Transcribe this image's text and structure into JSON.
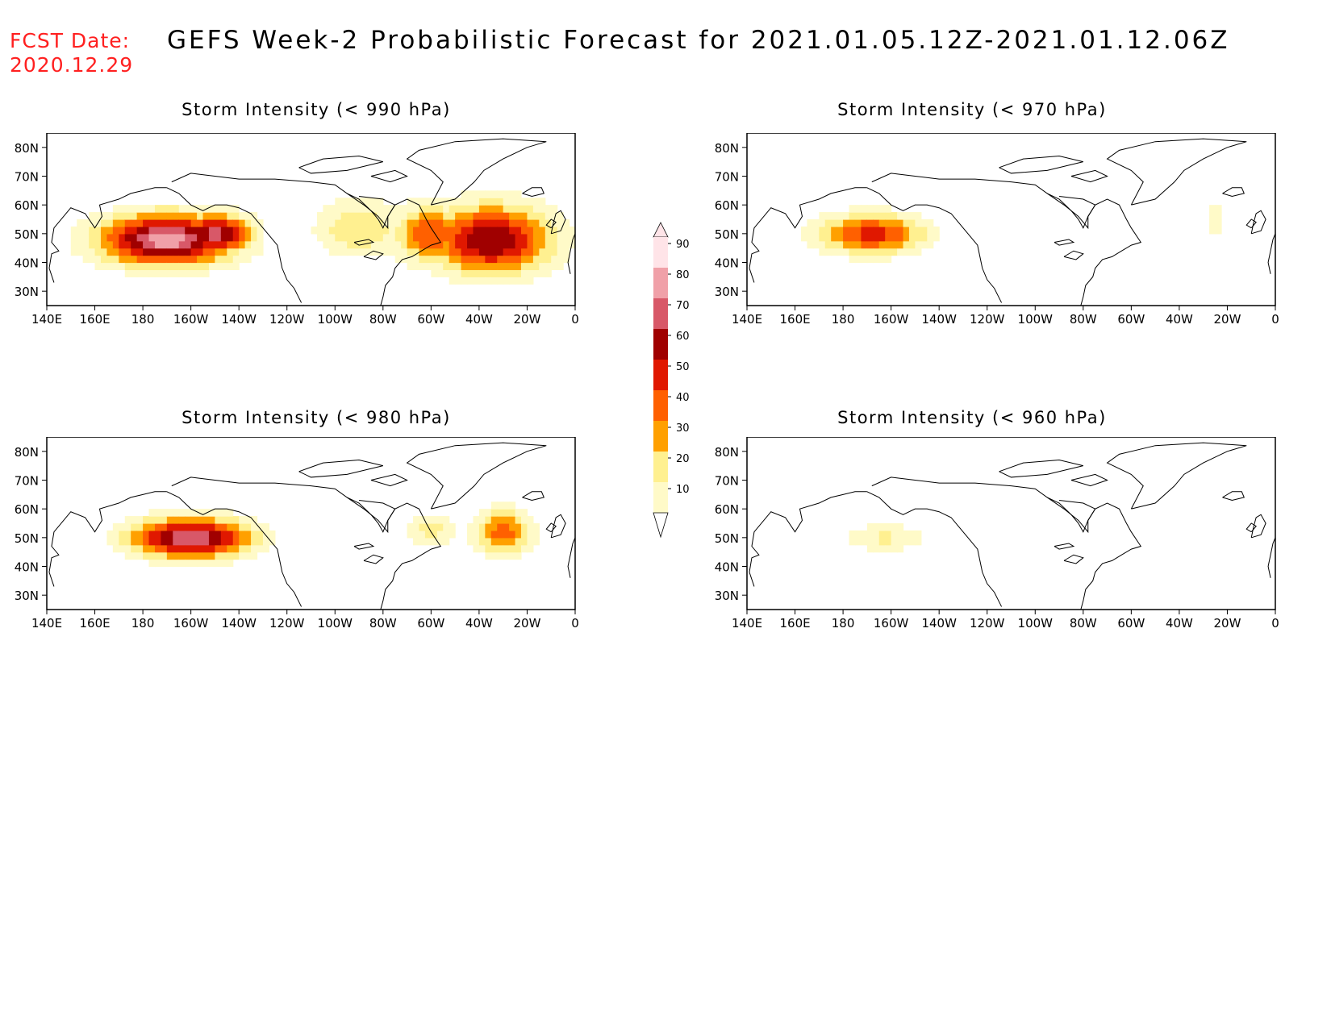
{
  "header": {
    "fcst_label": "FCST Date:",
    "fcst_date": "2020.12.29",
    "title": "GEFS Week-2 Probabilistic Forecast for 2021.01.05.12Z-2021.01.12.06Z"
  },
  "axes": {
    "lat_ticks": [
      "80N",
      "70N",
      "60N",
      "50N",
      "40N",
      "30N"
    ],
    "lon_ticks": [
      "140E",
      "160E",
      "180",
      "160W",
      "140W",
      "120W",
      "100W",
      "80W",
      "60W",
      "40W",
      "20W",
      "0"
    ]
  },
  "panels": [
    {
      "id": "p990",
      "title": "Storm Intensity (< 990 hPa)"
    },
    {
      "id": "p970",
      "title": "Storm Intensity (< 970 hPa)"
    },
    {
      "id": "p980",
      "title": "Storm Intensity (< 980 hPa)"
    },
    {
      "id": "p960",
      "title": "Storm Intensity (< 960 hPa)"
    }
  ],
  "colorbar": {
    "labels": [
      "90",
      "80",
      "70",
      "60",
      "50",
      "40",
      "30",
      "20",
      "10"
    ],
    "colors": [
      "#ffe4e8",
      "#f0a0a8",
      "#d85868",
      "#a00000",
      "#e01800",
      "#ff6000",
      "#ffa000",
      "#fff090",
      "#fffac8"
    ]
  },
  "chart_data": [
    {
      "type": "heatmap",
      "title": "Storm Intensity (< 990 hPa)",
      "blobs": [
        {
          "lon": -170,
          "lat": 48,
          "peak": 85,
          "rlon": 28,
          "rlat": 9
        },
        {
          "lon": -150,
          "lat": 50,
          "peak": 75,
          "rlon": 15,
          "rlat": 7
        },
        {
          "lon": -35,
          "lat": 48,
          "peak": 70,
          "rlon": 25,
          "rlat": 12
        },
        {
          "lon": -60,
          "lat": 50,
          "peak": 50,
          "rlon": 15,
          "rlat": 10
        },
        {
          "lon": -90,
          "lat": 52,
          "peak": 30,
          "rlon": 18,
          "rlat": 10
        }
      ]
    },
    {
      "type": "heatmap",
      "title": "Storm Intensity (< 970 hPa)",
      "blobs": [
        {
          "lon": -168,
          "lat": 50,
          "peak": 55,
          "rlon": 22,
          "rlat": 7
        },
        {
          "lon": -25,
          "lat": 55,
          "peak": 25,
          "rlon": 3,
          "rlat": 5
        }
      ]
    },
    {
      "type": "heatmap",
      "title": "Storm Intensity (< 980 hPa)",
      "blobs": [
        {
          "lon": -160,
          "lat": 50,
          "peak": 80,
          "rlon": 25,
          "rlat": 7
        },
        {
          "lon": -30,
          "lat": 52,
          "peak": 45,
          "rlon": 12,
          "rlat": 8
        },
        {
          "lon": -60,
          "lat": 53,
          "peak": 25,
          "rlon": 10,
          "rlat": 6
        }
      ]
    },
    {
      "type": "heatmap",
      "title": "Storm Intensity (< 960 hPa)",
      "blobs": [
        {
          "lon": -163,
          "lat": 50,
          "peak": 22,
          "rlon": 17,
          "rlat": 5
        }
      ]
    }
  ]
}
